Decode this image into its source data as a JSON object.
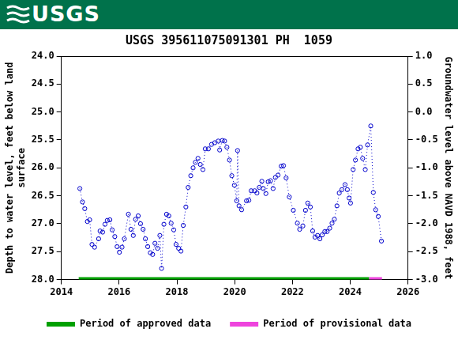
{
  "header": {
    "logo": "USGS"
  },
  "chart_data": {
    "type": "line",
    "title": "USGS 395611075091301 PH  1059",
    "xlabel": null,
    "ylabel": "Depth to water level, feet below land surface",
    "y2label": "Groundwater level above NAVD 1988, feet",
    "xlim": [
      2014,
      2026
    ],
    "xticks": [
      2014,
      2016,
      2018,
      2020,
      2022,
      2024,
      2026
    ],
    "ylim": [
      28,
      24
    ],
    "yticks": [
      {
        "value": 24,
        "label": "24.0"
      },
      {
        "value": 24.5,
        "label": "24.5"
      },
      {
        "value": 25,
        "label": "25.0"
      },
      {
        "value": 25.5,
        "label": "25.5"
      },
      {
        "value": 26,
        "label": "26.0"
      },
      {
        "value": 26.5,
        "label": "26.5"
      },
      {
        "value": 27,
        "label": "27.0"
      },
      {
        "value": 27.5,
        "label": "27.5"
      },
      {
        "value": 28,
        "label": "28.0"
      }
    ],
    "y2lim": [
      -3,
      1
    ],
    "y2ticks": [
      {
        "value": -3,
        "label": "-3.0"
      },
      {
        "value": -2.5,
        "label": "-2.5"
      },
      {
        "value": -2,
        "label": "-2.0"
      },
      {
        "value": -1.5,
        "label": "-1.5"
      },
      {
        "value": -1,
        "label": "-1.0"
      },
      {
        "value": -0.5,
        "label": "-0.5"
      },
      {
        "value": 0,
        "label": "0.0"
      },
      {
        "value": 0.5,
        "label": "0.5"
      },
      {
        "value": 1,
        "label": "1.0"
      }
    ],
    "grid": false,
    "legend": "bottom",
    "x": [
      2014.64,
      2014.73,
      2014.81,
      2014.9,
      2014.98,
      2015.06,
      2015.15,
      2015.29,
      2015.34,
      2015.43,
      2015.51,
      2015.59,
      2015.68,
      2015.76,
      2015.85,
      2015.93,
      2016.01,
      2016.1,
      2016.18,
      2016.32,
      2016.41,
      2016.49,
      2016.57,
      2016.66,
      2016.74,
      2016.83,
      2016.91,
      2016.99,
      2017.08,
      2017.16,
      2017.24,
      2017.33,
      2017.41,
      2017.47,
      2017.55,
      2017.64,
      2017.72,
      2017.8,
      2017.89,
      2017.97,
      2018.06,
      2018.14,
      2018.22,
      2018.31,
      2018.39,
      2018.48,
      2018.56,
      2018.64,
      2018.73,
      2018.81,
      2018.9,
      2018.98,
      2019.09,
      2019.2,
      2019.31,
      2019.43,
      2019.48,
      2019.57,
      2019.65,
      2019.73,
      2019.82,
      2019.9,
      2019.99,
      2020.07,
      2020.1,
      2020.15,
      2020.24,
      2020.41,
      2020.49,
      2020.57,
      2020.69,
      2020.77,
      2020.85,
      2020.94,
      2020.99,
      2021.08,
      2021.16,
      2021.24,
      2021.33,
      2021.41,
      2021.5,
      2021.61,
      2021.69,
      2021.78,
      2021.89,
      2022.03,
      2022.17,
      2022.25,
      2022.36,
      2022.45,
      2022.53,
      2022.62,
      2022.7,
      2022.78,
      2022.87,
      2022.95,
      2023.03,
      2023.12,
      2023.2,
      2023.29,
      2023.37,
      2023.45,
      2023.54,
      2023.62,
      2023.71,
      2023.82,
      2023.9,
      2023.96,
      2024.01,
      2024.1,
      2024.18,
      2024.27,
      2024.35,
      2024.43,
      2024.52,
      2024.6,
      2024.71,
      2024.8,
      2024.88,
      2024.97,
      2025.08
    ],
    "series": [
      {
        "color": "#0000cc",
        "marker": "circle",
        "line_style": "dotted",
        "values": [
          26.37,
          26.61,
          26.73,
          26.96,
          26.93,
          27.37,
          27.42,
          27.27,
          27.13,
          27.15,
          27.01,
          26.94,
          26.93,
          27.11,
          27.23,
          27.41,
          27.51,
          27.42,
          27.27,
          26.83,
          27.1,
          27.21,
          26.92,
          26.86,
          27.0,
          27.1,
          27.27,
          27.41,
          27.52,
          27.55,
          27.35,
          27.44,
          27.21,
          27.8,
          27.01,
          26.83,
          26.86,
          26.99,
          27.11,
          27.37,
          27.44,
          27.49,
          27.03,
          26.7,
          26.35,
          26.14,
          26.0,
          25.9,
          25.83,
          25.94,
          26.03,
          25.66,
          25.66,
          25.58,
          25.55,
          25.52,
          25.68,
          25.51,
          25.52,
          25.63,
          25.86,
          26.14,
          26.31,
          26.59,
          25.69,
          26.68,
          26.75,
          26.59,
          26.58,
          26.41,
          26.41,
          26.45,
          26.35,
          26.24,
          26.37,
          26.46,
          26.25,
          26.23,
          26.37,
          26.17,
          26.13,
          25.97,
          25.96,
          26.18,
          26.52,
          26.76,
          26.99,
          27.1,
          27.04,
          26.76,
          26.63,
          26.7,
          27.13,
          27.24,
          27.21,
          27.27,
          27.2,
          27.14,
          27.14,
          27.08,
          26.99,
          26.92,
          26.68,
          26.45,
          26.39,
          26.3,
          26.39,
          26.54,
          26.63,
          26.03,
          25.86,
          25.66,
          25.63,
          25.83,
          26.03,
          25.59,
          25.25,
          26.44,
          26.75,
          26.87,
          27.31
        ]
      }
    ],
    "periods": [
      {
        "name": "Period of approved data",
        "color": "#00a000",
        "start": 2014.6,
        "end": 2024.65
      },
      {
        "name": "Period of provisional data",
        "color": "#ee44dd",
        "start": 2024.65,
        "end": 2025.1
      }
    ]
  }
}
